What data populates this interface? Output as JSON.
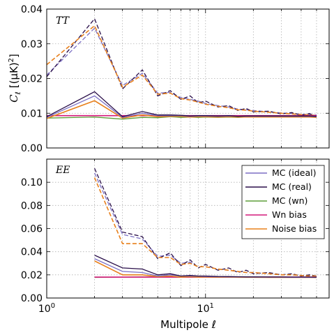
{
  "chart_data": {
    "type": "line",
    "xscale": "log",
    "xlim": [
      1,
      60
    ],
    "xticks": [
      {
        "value": 1,
        "base": "10",
        "exp": "0"
      },
      {
        "value": 10,
        "base": "10",
        "exp": "1"
      }
    ],
    "xlabel": "Multipole ℓ",
    "ylabel_main": "C",
    "ylabel_sub": "ℓ",
    "ylabel_unit": "[(μK)",
    "ylabel_exp": "2",
    "ylabel_close": "]",
    "grid": true,
    "legend_placement": "top-right of lower panel",
    "panels": [
      {
        "label": "TT",
        "ylim": [
          0,
          0.04
        ],
        "yticks": [
          0.0,
          0.01,
          0.02,
          0.03,
          0.04
        ],
        "ytick_labels": [
          "0.00",
          "0.01",
          "0.02",
          "0.03",
          "0.04"
        ],
        "x": [
          1,
          2,
          3,
          4,
          5,
          6,
          7,
          8,
          9,
          10,
          12,
          14,
          16,
          18,
          20,
          25,
          30,
          35,
          40,
          45,
          50
        ],
        "series": [
          {
            "name": "MC (ideal)",
            "style": "solid",
            "values": [
              0.0088,
              0.015,
              0.0088,
              0.01,
              0.0093,
              0.0093,
              0.0093,
              0.0091,
              0.0092,
              0.0092,
              0.0091,
              0.0092,
              0.0091,
              0.0091,
              0.0091,
              0.0091,
              0.0091,
              0.0091,
              0.0091,
              0.0091,
              0.009
            ]
          },
          {
            "name": "MC (real)",
            "style": "solid",
            "values": [
              0.009,
              0.0162,
              0.009,
              0.0105,
              0.0095,
              0.0095,
              0.0094,
              0.0092,
              0.0093,
              0.0093,
              0.0092,
              0.0093,
              0.0091,
              0.0092,
              0.0092,
              0.0092,
              0.0092,
              0.0092,
              0.0092,
              0.0092,
              0.0091
            ]
          },
          {
            "name": "MC (wn)",
            "style": "solid",
            "values": [
              0.0086,
              0.0089,
              0.0083,
              0.0088,
              0.0087,
              0.009,
              0.0088,
              0.0089,
              0.0088,
              0.0089,
              0.0088,
              0.0089,
              0.0088,
              0.0089,
              0.0089,
              0.0089,
              0.0089,
              0.0089,
              0.0089,
              0.0089,
              0.0089
            ]
          },
          {
            "name": "Wn bias",
            "style": "solid",
            "values": [
              0.0093,
              0.0093,
              0.0093,
              0.0093,
              0.0093,
              0.0093,
              0.0093,
              0.0093,
              0.0093,
              0.0093,
              0.0093,
              0.0093,
              0.0093,
              0.0093,
              0.0093,
              0.0093,
              0.0093,
              0.0093,
              0.0093,
              0.0093,
              0.0093
            ]
          },
          {
            "name": "Noise bias",
            "style": "solid",
            "values": [
              0.0085,
              0.0136,
              0.0086,
              0.0095,
              0.009,
              0.0091,
              0.0091,
              0.0089,
              0.009,
              0.009,
              0.0089,
              0.009,
              0.0089,
              0.0089,
              0.0089,
              0.0089,
              0.0089,
              0.0089,
              0.0089,
              0.0089,
              0.0088
            ]
          },
          {
            "style": "dashed",
            "color_ref": 0,
            "values": [
              0.021,
              0.0345,
              0.018,
              0.0215,
              0.0158,
              0.016,
              0.0145,
              0.014,
              0.0135,
              0.0128,
              0.0122,
              0.0118,
              0.0112,
              0.011,
              0.0108,
              0.0104,
              0.0101,
              0.0099,
              0.0097,
              0.0096,
              0.0095
            ]
          },
          {
            "style": "dashed",
            "color_ref": 1,
            "values": [
              0.0205,
              0.0372,
              0.017,
              0.0225,
              0.015,
              0.0165,
              0.014,
              0.015,
              0.013,
              0.0135,
              0.0118,
              0.0122,
              0.0108,
              0.0114,
              0.0104,
              0.0106,
              0.0098,
              0.0102,
              0.0094,
              0.0099,
              0.0092
            ]
          },
          {
            "style": "dashed",
            "color_ref": 4,
            "values": [
              0.024,
              0.0352,
              0.0175,
              0.021,
              0.0155,
              0.0158,
              0.0142,
              0.0138,
              0.0132,
              0.0126,
              0.012,
              0.0116,
              0.011,
              0.0109,
              0.0106,
              0.0103,
              0.01,
              0.0098,
              0.0096,
              0.0095,
              0.0093
            ]
          }
        ]
      },
      {
        "label": "EE",
        "ylim": [
          0,
          0.12
        ],
        "yticks": [
          0.0,
          0.02,
          0.04,
          0.06,
          0.08,
          0.1
        ],
        "ytick_labels": [
          "0.00",
          "0.02",
          "0.04",
          "0.06",
          "0.08",
          "0.10"
        ],
        "x": [
          2,
          3,
          4,
          5,
          6,
          7,
          8,
          9,
          10,
          12,
          14,
          16,
          18,
          20,
          25,
          30,
          35,
          40,
          45,
          50
        ],
        "series": [
          {
            "name": "MC (ideal)",
            "style": "solid",
            "values": [
              0.034,
              0.023,
              0.022,
              0.019,
              0.02,
              0.019,
              0.019,
              0.0188,
              0.0186,
              0.0184,
              0.0183,
              0.0182,
              0.0181,
              0.0181,
              0.018,
              0.018,
              0.0179,
              0.0179,
              0.0179,
              0.0178
            ]
          },
          {
            "name": "MC (real)",
            "style": "solid",
            "values": [
              0.037,
              0.026,
              0.025,
              0.02,
              0.021,
              0.019,
              0.0195,
              0.019,
              0.019,
              0.0186,
              0.0185,
              0.0184,
              0.0183,
              0.0183,
              0.0182,
              0.0182,
              0.0181,
              0.0181,
              0.0181,
              0.018
            ]
          },
          {
            "name": "MC (wn)",
            "style": "solid",
            "values": [
              0.0178,
              0.018,
              0.0182,
              0.0181,
              0.0181,
              0.018,
              0.0181,
              0.018,
              0.0181,
              0.018,
              0.018,
              0.018,
              0.018,
              0.018,
              0.018,
              0.018,
              0.018,
              0.018,
              0.018,
              0.018
            ]
          },
          {
            "name": "Wn bias",
            "style": "solid",
            "values": [
              0.018,
              0.018,
              0.018,
              0.018,
              0.018,
              0.018,
              0.018,
              0.018,
              0.018,
              0.018,
              0.018,
              0.018,
              0.018,
              0.018,
              0.018,
              0.018,
              0.018,
              0.018,
              0.018,
              0.018
            ]
          },
          {
            "name": "Noise bias",
            "style": "solid",
            "values": [
              0.032,
              0.02,
              0.02,
              0.0185,
              0.019,
              0.018,
              0.0185,
              0.018,
              0.0182,
              0.018,
              0.018,
              0.0179,
              0.0179,
              0.0179,
              0.0178,
              0.0178,
              0.0178,
              0.0178,
              0.0178,
              0.0177
            ]
          },
          {
            "style": "dashed",
            "color_ref": 0,
            "values": [
              0.108,
              0.055,
              0.051,
              0.036,
              0.037,
              0.03,
              0.031,
              0.027,
              0.027,
              0.025,
              0.024,
              0.023,
              0.022,
              0.022,
              0.021,
              0.02,
              0.02,
              0.0195,
              0.019,
              0.019
            ]
          },
          {
            "style": "dashed",
            "color_ref": 1,
            "values": [
              0.112,
              0.057,
              0.053,
              0.034,
              0.039,
              0.028,
              0.033,
              0.026,
              0.029,
              0.024,
              0.026,
              0.022,
              0.024,
              0.021,
              0.022,
              0.02,
              0.021,
              0.019,
              0.02,
              0.019
            ]
          },
          {
            "style": "dashed",
            "color_ref": 4,
            "values": [
              0.104,
              0.047,
              0.047,
              0.035,
              0.035,
              0.029,
              0.03,
              0.027,
              0.027,
              0.025,
              0.024,
              0.023,
              0.022,
              0.022,
              0.021,
              0.02,
              0.02,
              0.0195,
              0.019,
              0.019
            ]
          }
        ]
      }
    ]
  },
  "colors": {
    "series": [
      "#7b6fc4",
      "#2a0f4a",
      "#5e9e3a",
      "#d4187a",
      "#e8801c"
    ],
    "grid": "#b0b0b0",
    "axis": "#000000"
  }
}
